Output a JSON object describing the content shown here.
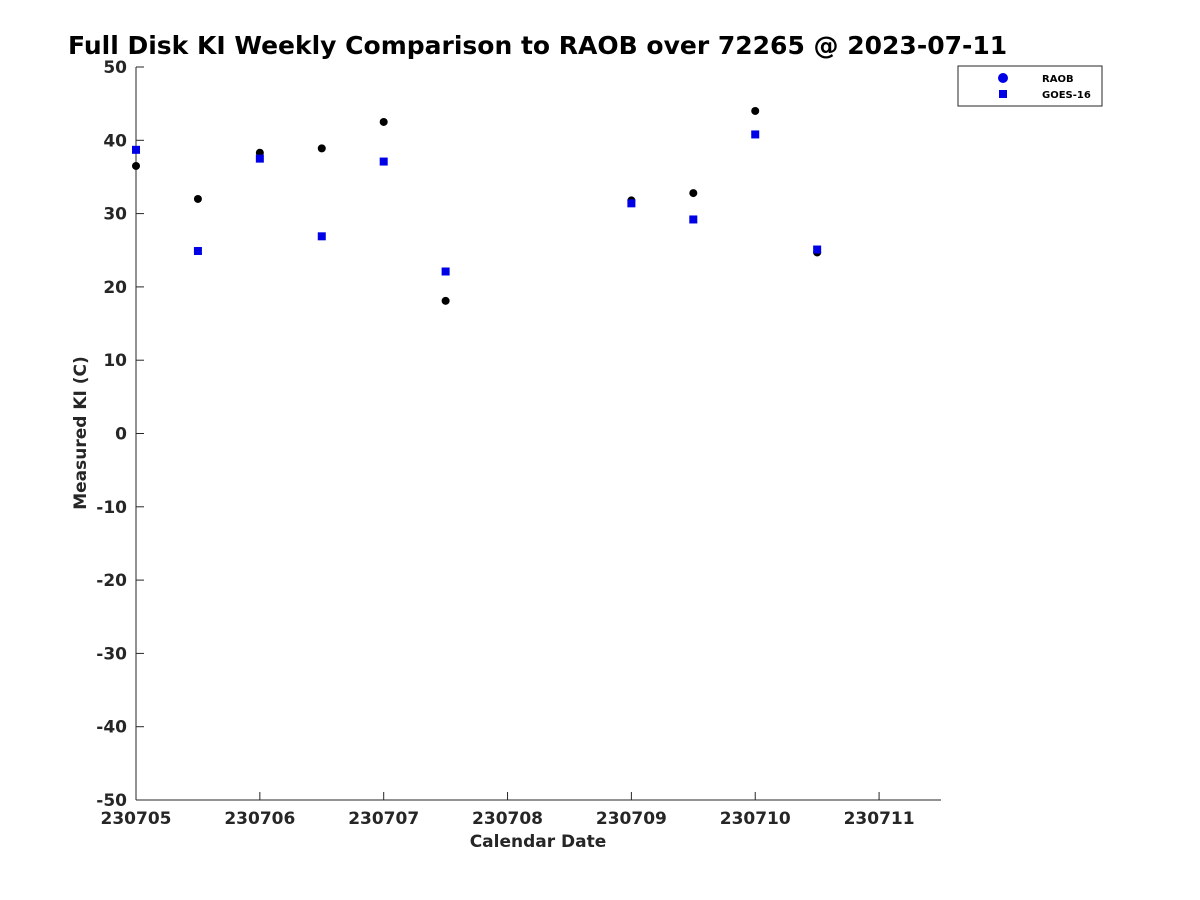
{
  "chart_data": {
    "type": "scatter",
    "title": "Full Disk KI Weekly Comparison to RAOB over 72265 @ 2023-07-11",
    "xlabel": "Calendar Date",
    "ylabel": "Measured KI (C)",
    "xlim": [
      230705,
      230711.5
    ],
    "ylim": [
      -50,
      50
    ],
    "xticks": [
      230705,
      230706,
      230707,
      230708,
      230709,
      230710,
      230711
    ],
    "xtick_labels": [
      "230705",
      "230706",
      "230707",
      "230708",
      "230709",
      "230710",
      "230711"
    ],
    "yticks": [
      50,
      40,
      30,
      20,
      10,
      0,
      -10,
      -20,
      -30,
      -40,
      -50
    ],
    "ytick_labels": [
      "50",
      "40",
      "30",
      "20",
      "10",
      "0",
      "-10",
      "-20",
      "-30",
      "-40",
      "-50"
    ],
    "grid": false,
    "legend_position": "top-right",
    "series": [
      {
        "name": "RAOB",
        "marker": "circle",
        "color": "#000000",
        "legend_color": "#0000e6",
        "x": [
          230705,
          230705.5,
          230706,
          230706.5,
          230707,
          230707.5,
          230709,
          230709.5,
          230710,
          230710.5
        ],
        "y": [
          36.5,
          32.0,
          38.3,
          38.9,
          42.5,
          18.1,
          31.8,
          32.8,
          44.0,
          24.7
        ]
      },
      {
        "name": "GOES-16",
        "marker": "square",
        "color": "#0000e6",
        "legend_color": "#0000e6",
        "x": [
          230705,
          230705.5,
          230706,
          230706.5,
          230707,
          230707.5,
          230709,
          230709.5,
          230710,
          230710.5
        ],
        "y": [
          38.7,
          24.9,
          37.5,
          26.9,
          37.1,
          22.1,
          31.4,
          29.2,
          40.8,
          25.1
        ]
      }
    ]
  }
}
